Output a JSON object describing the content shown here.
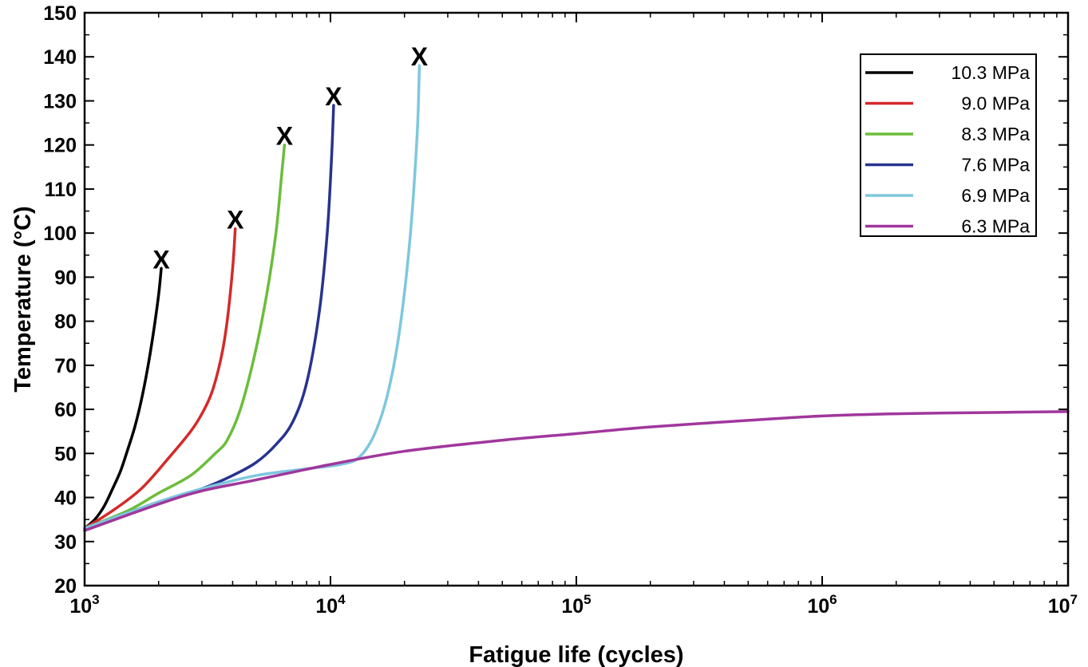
{
  "chart_data": {
    "type": "line",
    "title": "",
    "xlabel": "Fatigue life (cycles)",
    "ylabel": "Temperature (°C)",
    "xscale": "log",
    "xlim": [
      1000,
      10000000
    ],
    "ylim": [
      20,
      150
    ],
    "y_ticks": [
      20,
      30,
      40,
      50,
      60,
      70,
      80,
      90,
      100,
      110,
      120,
      130,
      140,
      150
    ],
    "x_ticks": [
      {
        "value": 1000,
        "base": "10",
        "exp": "3"
      },
      {
        "value": 10000,
        "base": "10",
        "exp": "4"
      },
      {
        "value": 100000,
        "base": "10",
        "exp": "5"
      },
      {
        "value": 1000000,
        "base": "10",
        "exp": "6"
      },
      {
        "value": 10000000,
        "base": "10",
        "exp": "7"
      }
    ],
    "grid": false,
    "legend_position": "top-right",
    "failure_marker": "X",
    "series": [
      {
        "name": "10.3 MPa",
        "color": "#000000",
        "x": [
          1000,
          1100,
          1200,
          1300,
          1400,
          1500,
          1600,
          1700,
          1800,
          1900,
          2000,
          2050
        ],
        "y": [
          33,
          35,
          38,
          42,
          46,
          51,
          56,
          62,
          69,
          77,
          86,
          92
        ],
        "failure": {
          "x": 2050,
          "y": 94
        }
      },
      {
        "name": "9.0 MPa",
        "color": "#d42a2a",
        "x": [
          1000,
          1300,
          1700,
          2200,
          2700,
          3000,
          3300,
          3600,
          3800,
          4000,
          4100
        ],
        "y": [
          33,
          37,
          42,
          49,
          55,
          59,
          64,
          72,
          80,
          92,
          101
        ],
        "failure": {
          "x": 4100,
          "y": 103
        }
      },
      {
        "name": "8.3 MPa",
        "color": "#6cbd3b",
        "x": [
          1000,
          1500,
          2000,
          2700,
          3400,
          3800,
          4300,
          4900,
          5500,
          6000,
          6300,
          6500
        ],
        "y": [
          33,
          37,
          41,
          45,
          50,
          53,
          60,
          72,
          86,
          100,
          112,
          120
        ],
        "failure": {
          "x": 6500,
          "y": 122
        }
      },
      {
        "name": "7.6 MPa",
        "color": "#27338f",
        "x": [
          1000,
          2000,
          3000,
          4000,
          5000,
          6000,
          7000,
          8000,
          9000,
          9700,
          10100,
          10300
        ],
        "y": [
          33,
          39,
          42,
          45,
          48,
          52,
          57,
          66,
          82,
          100,
          117,
          129
        ],
        "failure": {
          "x": 10300,
          "y": 131
        }
      },
      {
        "name": "6.9 MPa",
        "color": "#7ec7de",
        "x": [
          1000,
          2000,
          3000,
          5000,
          8000,
          11000,
          13000,
          15000,
          17000,
          19000,
          21000,
          22500,
          23000
        ],
        "y": [
          33,
          39,
          42,
          45,
          46.5,
          47.5,
          49,
          54,
          63,
          77,
          98,
          122,
          138
        ],
        "failure": {
          "x": 23000,
          "y": 140
        }
      },
      {
        "name": "6.3 MPa",
        "color": "#a0379c",
        "x": [
          1000,
          2000,
          3000,
          5000,
          10000,
          20000,
          50000,
          100000,
          200000,
          500000,
          1000000,
          2000000,
          5000000,
          10000000
        ],
        "y": [
          32.5,
          38.5,
          41.5,
          44,
          47.5,
          50.5,
          53,
          54.5,
          56,
          57.5,
          58.5,
          59,
          59.3,
          59.5
        ]
      }
    ]
  }
}
